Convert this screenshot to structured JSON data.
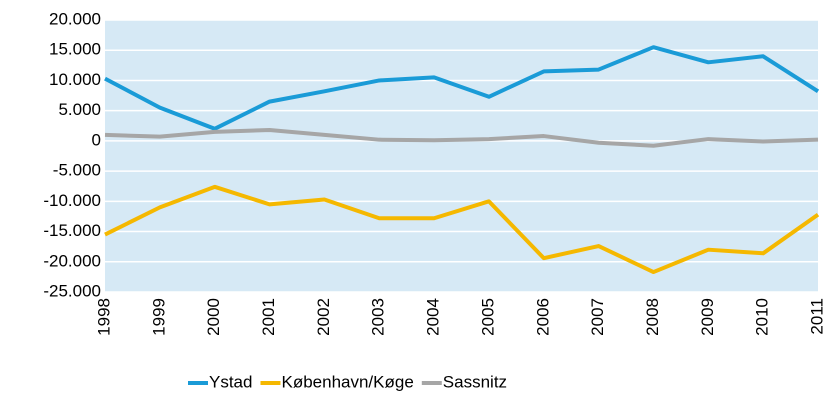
{
  "chart_data": {
    "type": "line",
    "categories": [
      "1998",
      "1999",
      "2000",
      "2001",
      "2002",
      "2003",
      "2004",
      "2005",
      "2006",
      "2007",
      "2008",
      "2009",
      "2010",
      "2011"
    ],
    "series": [
      {
        "name": "Ystad",
        "color": "#1a9bd7",
        "values": [
          10300,
          5500,
          2000,
          6500,
          8200,
          10000,
          10500,
          7300,
          11500,
          11800,
          15500,
          13000,
          14000,
          8200
        ]
      },
      {
        "name": "København/Køge",
        "color": "#f5b800",
        "values": [
          -15500,
          -11000,
          -7600,
          -10500,
          -9700,
          -12800,
          -12800,
          -10000,
          -19400,
          -17400,
          -21700,
          -18000,
          -18600,
          -12200
        ]
      },
      {
        "name": "Sassnitz",
        "color": "#a6a6a6",
        "values": [
          1000,
          700,
          1500,
          1800,
          1000,
          200,
          100,
          300,
          800,
          -300,
          -800,
          300,
          -100,
          200
        ]
      }
    ],
    "ylim": [
      -25000,
      20000
    ],
    "yticks": [
      {
        "value": -25000,
        "label": "-25.000"
      },
      {
        "value": -20000,
        "label": "-20.000"
      },
      {
        "value": -15000,
        "label": "-15.000"
      },
      {
        "value": -10000,
        "label": "-10.000"
      },
      {
        "value": -5000,
        "label": "-5.000"
      },
      0,
      {
        "value": 5000,
        "label": "5.000"
      },
      {
        "value": 10000,
        "label": "10.000"
      },
      {
        "value": 15000,
        "label": "15.000"
      },
      {
        "value": 20000,
        "label": "20.000"
      }
    ],
    "grid": true,
    "legend": "bottom"
  }
}
